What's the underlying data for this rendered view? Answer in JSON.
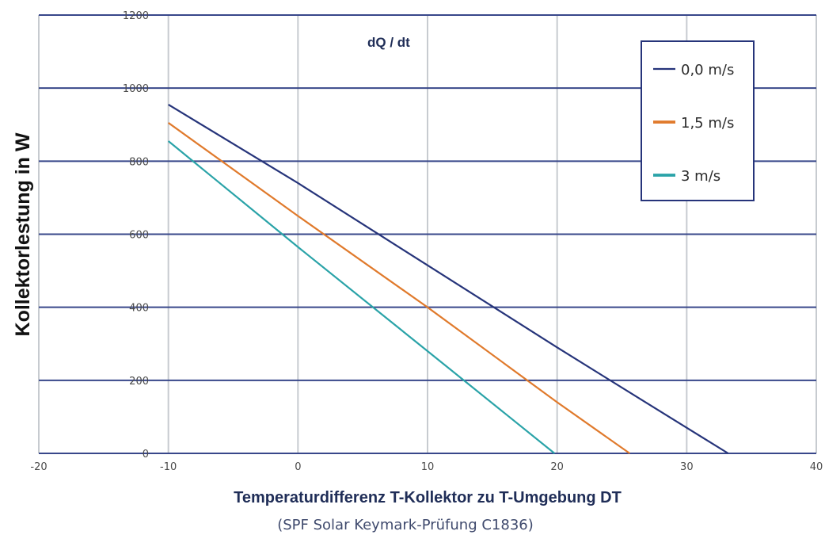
{
  "chart_data": {
    "type": "line",
    "title": "dQ / dt",
    "xlabel": "Temperaturdifferenz T-Kollektor zu T-Umgebung DT",
    "subtitle": "(SPF Solar Keymark-Prüfung C1836)",
    "ylabel": "Kollektorlestung in W",
    "xlim": [
      -20,
      40
    ],
    "ylim": [
      0,
      1200
    ],
    "xticks": [
      -20,
      -10,
      0,
      10,
      20,
      30,
      40
    ],
    "yticks": [
      0,
      200,
      400,
      600,
      800,
      1000,
      1200
    ],
    "grid": true,
    "legend_position": "top-right",
    "series": [
      {
        "name": "0,0 m/s",
        "color": "#26347a",
        "x": [
          -10,
          0,
          10,
          20,
          30,
          33.2
        ],
        "y": [
          955,
          740,
          515,
          290,
          70,
          0
        ]
      },
      {
        "name": "1,5 m/s",
        "color": "#e07a2c",
        "x": [
          -10,
          0,
          10,
          20,
          25.6
        ],
        "y": [
          905,
          650,
          400,
          140,
          0
        ]
      },
      {
        "name": "3 m/s",
        "color": "#2aa3a8",
        "x": [
          -10,
          0,
          10,
          19.8
        ],
        "y": [
          855,
          565,
          280,
          0
        ]
      }
    ]
  }
}
